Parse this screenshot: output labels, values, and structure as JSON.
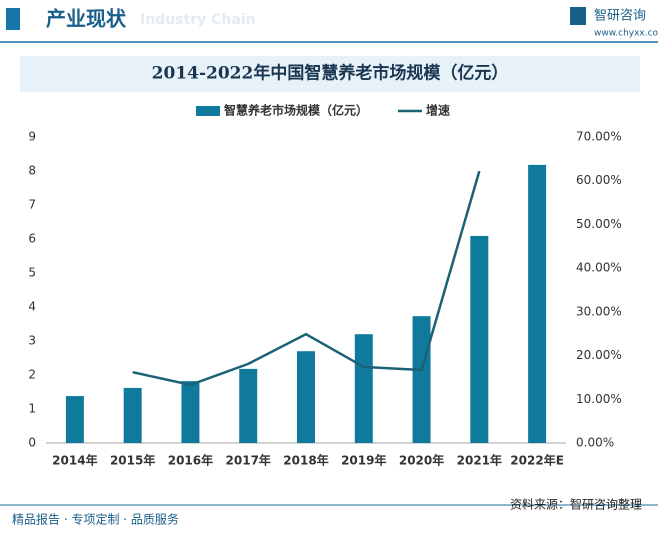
{
  "header": {
    "title": "产业现状",
    "subtitle": "Industry Chain",
    "brand": "智研咨询",
    "url": "www.chyxx.com"
  },
  "chart_data": {
    "type": "bar",
    "title": "2014-2022年中国智慧养老市场规模（亿元）",
    "categories": [
      "2014年",
      "2015年",
      "2016年",
      "2017年",
      "2018年",
      "2019年",
      "2020年",
      "2021年",
      "2022年E"
    ],
    "series": [
      {
        "name": "智慧养老市场规模（亿元）",
        "type": "bar",
        "color": "#0f7a9c",
        "values": [
          1.38,
          1.62,
          1.82,
          2.18,
          2.7,
          3.2,
          3.73,
          6.09,
          8.18
        ]
      },
      {
        "name": "增速",
        "type": "line",
        "axis": "y2",
        "color": "#1b6275",
        "values": [
          null,
          16.2,
          13.3,
          18.1,
          24.9,
          17.4,
          16.7,
          62.2,
          null
        ]
      }
    ],
    "ylim": [
      0,
      9
    ],
    "yticks": [
      0,
      1,
      2,
      3,
      4,
      5,
      6,
      7,
      8,
      9
    ],
    "y2lim": [
      0,
      70
    ],
    "y2ticks": [
      {
        "value": 0,
        "label": "0.00%"
      },
      {
        "value": 10,
        "label": "10.00%"
      },
      {
        "value": 20,
        "label": "20.00%"
      },
      {
        "value": 30,
        "label": "30.00%"
      },
      {
        "value": 40,
        "label": "40.00%"
      },
      {
        "value": 50,
        "label": "50.00%"
      },
      {
        "value": 60,
        "label": "60.00%"
      },
      {
        "value": 70,
        "label": "70.00%"
      }
    ],
    "legend": "top",
    "grid": false
  },
  "footer": {
    "slogan": "精品报告 · 专项定制 · 品质服务",
    "source": "资料来源：智研咨询整理"
  }
}
